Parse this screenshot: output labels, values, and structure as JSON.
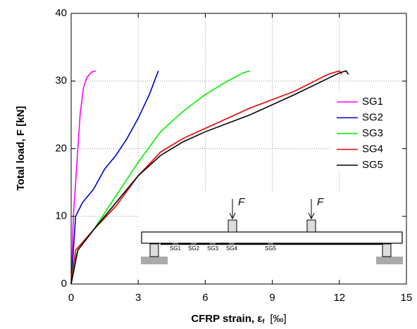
{
  "chart_data": {
    "type": "line",
    "ylabel": "Total load, F [kN]",
    "xlabel": "CFRP strain, ε",
    "xlabel_subscript": "f",
    "xlabel_unit": "[‰]",
    "xlim": [
      0,
      15
    ],
    "xticks": [
      0,
      3,
      6,
      9,
      12,
      15
    ],
    "ylim": [
      0,
      40
    ],
    "yticks": [
      0,
      10,
      20,
      30,
      40
    ],
    "grid": true,
    "legend": "upper right",
    "series": [
      {
        "name": "SG1",
        "color": "#ff00ff",
        "x": [
          0,
          0.05,
          0.1,
          0.2,
          0.3,
          0.4,
          0.55,
          0.7,
          0.9,
          1.1
        ],
        "values": [
          0,
          5,
          10,
          15,
          20,
          25,
          29,
          30.5,
          31.3,
          31.5
        ]
      },
      {
        "name": "SG2",
        "color": "#0000cc",
        "x": [
          0,
          0.1,
          0.2,
          0.5,
          1,
          1.5,
          2,
          2.5,
          3,
          3.5,
          3.9
        ],
        "values": [
          0,
          5,
          10,
          12,
          14,
          17,
          19,
          21.5,
          24.5,
          28,
          31.5
        ]
      },
      {
        "name": "SG3",
        "color": "#00ee00",
        "x": [
          0,
          0.1,
          0.3,
          1,
          2,
          3,
          4,
          5,
          6,
          7,
          7.7,
          8
        ],
        "values": [
          0,
          3,
          5,
          8,
          13,
          18,
          22.5,
          25.5,
          28,
          30,
          31.2,
          31.5
        ]
      },
      {
        "name": "SG4",
        "color": "#ee0000",
        "x": [
          0,
          0.2,
          1,
          2,
          3,
          4,
          5,
          6,
          8,
          10,
          11.5,
          12,
          12.1
        ],
        "values": [
          0,
          5,
          8,
          11.5,
          16,
          19.5,
          21.5,
          23,
          26,
          28.5,
          31,
          31.5,
          31
        ]
      },
      {
        "name": "SG5",
        "color": "#000000",
        "x": [
          0,
          0.3,
          1,
          2,
          3,
          4,
          5,
          6,
          8,
          10,
          12,
          12.3,
          12.4
        ],
        "values": [
          0,
          5,
          8,
          12,
          16,
          19,
          21,
          22.5,
          25,
          28,
          31.2,
          31.5,
          31
        ]
      }
    ],
    "inset": {
      "loads": [
        "F",
        "F"
      ],
      "gauges": [
        "SG1",
        "SG2",
        "SG3",
        "SG4",
        "SG5"
      ]
    }
  }
}
